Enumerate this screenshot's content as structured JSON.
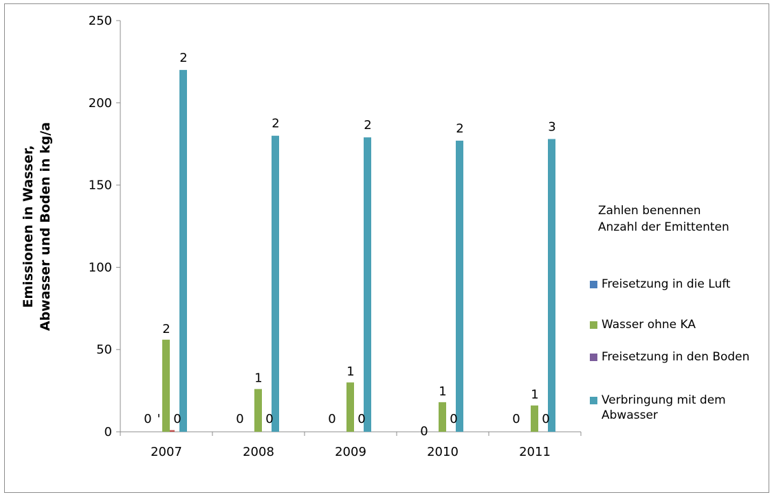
{
  "chart_data": {
    "type": "bar",
    "categories": [
      "2007",
      "2008",
      "2009",
      "2010",
      "2011"
    ],
    "ylabel_lines": [
      "Emissionen in Wasser,",
      "Abwasser und Boden in kg/a"
    ],
    "ylim": [
      0,
      250
    ],
    "yticks": [
      "0",
      "50",
      "100",
      "150",
      "200",
      "250"
    ],
    "ytick_values": [
      0,
      50,
      100,
      150,
      200,
      250
    ],
    "legend_placement": "right",
    "legend_note": [
      "Zahlen benennen",
      "Anzahl der Emittenten"
    ],
    "series": [
      {
        "name": "Freisetzung in die Luft",
        "color": "#4a7ebb",
        "values": [
          0,
          0,
          0,
          0,
          0
        ]
      },
      {
        "name": "",
        "color": "#c0504d",
        "values": [
          1,
          0,
          0,
          0,
          0
        ]
      },
      {
        "name": "Wasser ohne KA",
        "color": "#8cb04e",
        "values": [
          56,
          26,
          30,
          18,
          16
        ]
      },
      {
        "name": "Freisetzung in den Boden",
        "color": "#7b5c9b",
        "values": [
          0,
          0,
          0,
          0,
          0
        ]
      },
      {
        "name": "Verbringung mit dem Abwasser",
        "color": "#4aa0b5",
        "values": [
          220,
          180,
          179,
          177,
          178
        ]
      }
    ],
    "data_labels": [
      {
        "category": "2007",
        "labels": [
          "0",
          "'",
          "2",
          "0",
          "2"
        ]
      },
      {
        "category": "2008",
        "labels": [
          "0",
          "",
          "1",
          "0",
          "2"
        ]
      },
      {
        "category": "2009",
        "labels": [
          "0",
          "",
          "1",
          "0",
          "2"
        ]
      },
      {
        "category": "2010",
        "labels": [
          "0",
          "",
          "1",
          "0",
          "2"
        ]
      },
      {
        "category": "2011",
        "labels": [
          "0",
          "",
          "1",
          "0",
          "3"
        ]
      }
    ]
  }
}
